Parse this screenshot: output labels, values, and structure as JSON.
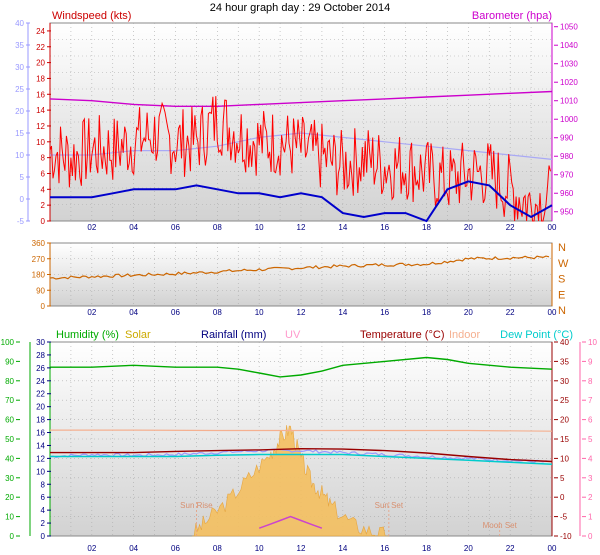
{
  "title": "24 hour graph day : 29 October 2014",
  "chart_data": [
    {
      "type": "line",
      "x_ticks": [
        "02",
        "04",
        "06",
        "08",
        "10",
        "12",
        "14",
        "16",
        "18",
        "20",
        "22",
        "00"
      ],
      "left_axis": {
        "label": "Windspeed (kts)",
        "ticks": [
          0,
          2,
          4,
          6,
          8,
          10,
          12,
          14,
          16,
          18,
          20,
          22,
          24
        ],
        "range": [
          0,
          25
        ]
      },
      "far_left_axis": {
        "ticks": [
          -5,
          0,
          5,
          10,
          15,
          20,
          25,
          30,
          35,
          40
        ],
        "range": [
          -5,
          40
        ]
      },
      "right_axis": {
        "label": "Barometer (hpa)",
        "ticks": [
          950,
          960,
          970,
          980,
          990,
          1000,
          1010,
          1020,
          1030,
          1040,
          1050
        ],
        "range": [
          945,
          1052
        ]
      },
      "series": [
        {
          "name": "Windspeed (kts)",
          "color": "#ff0000",
          "x": [
            0,
            1,
            2,
            3,
            4,
            5,
            6,
            7,
            8,
            9,
            10,
            11,
            12,
            13,
            14,
            15,
            16,
            17,
            18,
            19,
            20,
            21,
            22,
            23,
            24
          ],
          "values": [
            9,
            8,
            9,
            9,
            10,
            11,
            10,
            10,
            13,
            11,
            10,
            10,
            9,
            8,
            7,
            8,
            7,
            7,
            6,
            5,
            6,
            6,
            4,
            2,
            3
          ]
        },
        {
          "name": "Windspeed avg",
          "color": "#0000cc",
          "x": [
            0,
            1,
            2,
            3,
            4,
            5,
            6,
            7,
            8,
            9,
            10,
            11,
            12,
            13,
            14,
            15,
            16,
            17,
            18,
            19,
            20,
            21,
            22,
            23,
            24
          ],
          "values": [
            3,
            3,
            3,
            3.5,
            4,
            4,
            4,
            4.5,
            4,
            3.5,
            3.5,
            3,
            3.5,
            3,
            1,
            0.5,
            1,
            1,
            0,
            4,
            5,
            4.5,
            2,
            0.5,
            2
          ]
        },
        {
          "name": "Barometer (hpa)",
          "color": "#cc00cc",
          "x": [
            0,
            2,
            4,
            6,
            8,
            10,
            12,
            14,
            16,
            18,
            20,
            22,
            24
          ],
          "values": [
            1011,
            1010,
            1008,
            1007,
            1007,
            1008,
            1009,
            1010,
            1011,
            1012,
            1013,
            1014,
            1015
          ]
        },
        {
          "name": "Gust scale line",
          "color": "#a9a9f5",
          "x": [
            0,
            2,
            4,
            6,
            8,
            10,
            12,
            14,
            16,
            18,
            20,
            22,
            24
          ],
          "values": [
            10,
            10,
            11,
            11,
            12,
            14,
            15,
            14,
            13,
            12,
            11,
            10,
            9
          ]
        }
      ]
    },
    {
      "type": "line",
      "x_ticks": [
        "02",
        "04",
        "06",
        "08",
        "10",
        "12",
        "14",
        "16",
        "18",
        "20",
        "22",
        "00"
      ],
      "left_axis": {
        "ticks": [
          0,
          90,
          180,
          270,
          360
        ],
        "range": [
          0,
          360
        ]
      },
      "right_labels": [
        "N",
        "W",
        "S",
        "E",
        "N"
      ],
      "series": [
        {
          "name": "Wind Direction",
          "color": "#cc6600",
          "x": [
            0,
            2,
            4,
            6,
            8,
            10,
            12,
            14,
            16,
            18,
            20,
            22,
            24
          ],
          "values": [
            160,
            168,
            176,
            184,
            196,
            208,
            218,
            228,
            236,
            240,
            270,
            276,
            278
          ]
        }
      ]
    },
    {
      "type": "line",
      "x_ticks": [
        "02",
        "04",
        "06",
        "08",
        "10",
        "12",
        "14",
        "16",
        "18",
        "20",
        "22",
        "00"
      ],
      "labels": [
        "Humidity (%)",
        "Solar",
        "Rainfall (mm)",
        "UV",
        "Temperature (°C)",
        "Indoor",
        "Dew Point (°C)"
      ],
      "left_axis_green": {
        "ticks": [
          0,
          10,
          20,
          30,
          40,
          50,
          60,
          70,
          80,
          90,
          100
        ],
        "range": [
          0,
          100
        ]
      },
      "left_axis_blue": {
        "ticks": [
          0,
          2,
          4,
          6,
          8,
          10,
          12,
          14,
          16,
          18,
          20,
          22,
          24,
          26,
          28,
          30
        ],
        "range": [
          0,
          30
        ]
      },
      "right_axis_red": {
        "ticks": [
          -10,
          -5,
          0,
          5,
          10,
          15,
          20,
          25,
          30,
          35,
          40
        ],
        "range": [
          -10,
          40
        ]
      },
      "right_axis_pink": {
        "ticks": [
          0,
          1,
          2,
          3,
          4,
          5,
          6,
          7,
          8,
          9,
          10
        ],
        "range": [
          0,
          10
        ]
      },
      "annotations": [
        "Sun Rise",
        "Sun Set",
        "Moon Set"
      ],
      "series": [
        {
          "name": "Humidity (%)",
          "color": "#00aa00",
          "x": [
            0,
            2,
            4,
            6,
            8,
            9,
            10,
            11,
            12,
            13,
            14,
            16,
            18,
            19,
            20,
            22,
            24
          ],
          "values": [
            87,
            87,
            88,
            87,
            87,
            86,
            84,
            82,
            83,
            85,
            88,
            90,
            92,
            91,
            89,
            87,
            86
          ]
        },
        {
          "name": "Temperature (°C)",
          "color": "#990000",
          "x": [
            0,
            2,
            4,
            6,
            8,
            10,
            12,
            14,
            16,
            18,
            20,
            22,
            24
          ],
          "values": [
            11.5,
            11.5,
            11.5,
            11.8,
            12,
            12.2,
            12.5,
            12.4,
            12,
            11.4,
            10.5,
            9.7,
            9.2
          ]
        },
        {
          "name": "Indoor",
          "color": "#f5b090",
          "x": [
            0,
            4,
            8,
            12,
            16,
            20,
            24
          ],
          "values": [
            17.3,
            17.3,
            17.2,
            17.2,
            17.2,
            17.2,
            17.0
          ]
        },
        {
          "name": "Apparent",
          "color": "#9999ff",
          "x": [
            0,
            2,
            4,
            6,
            8,
            10,
            12,
            14,
            16,
            18,
            20,
            22,
            24
          ],
          "values": [
            10.5,
            11,
            10.8,
            11,
            11.5,
            12,
            12,
            11.5,
            11,
            10.5,
            10,
            9.5,
            9
          ]
        },
        {
          "name": "Dew Point (°C)",
          "color": "#00cccc",
          "x": [
            0,
            2,
            4,
            6,
            8,
            10,
            12,
            14,
            16,
            18,
            20,
            22,
            24
          ],
          "values": [
            10.5,
            10.5,
            10.5,
            10.5,
            10.8,
            11,
            11,
            11,
            10.5,
            10,
            9.5,
            9,
            8.5
          ]
        },
        {
          "name": "Solar",
          "color": "#f0c040",
          "x": [
            6.8,
            7.5,
            8.5,
            9.5,
            10.5,
            11,
            11.5,
            12,
            12.5,
            13,
            13.5,
            14.5,
            15.5,
            16.2
          ],
          "values": [
            0.1,
            0.8,
            1.8,
            3,
            4.2,
            5,
            5.6,
            4,
            2.8,
            2.2,
            1.5,
            0.6,
            0.2,
            0
          ]
        },
        {
          "name": "UV",
          "color": "#cc44cc",
          "x": [
            10,
            10.5,
            11,
            11.5,
            12,
            12.5,
            13
          ],
          "values": [
            0.4,
            0.6,
            0.8,
            1.0,
            0.8,
            0.6,
            0.4
          ]
        }
      ]
    }
  ]
}
